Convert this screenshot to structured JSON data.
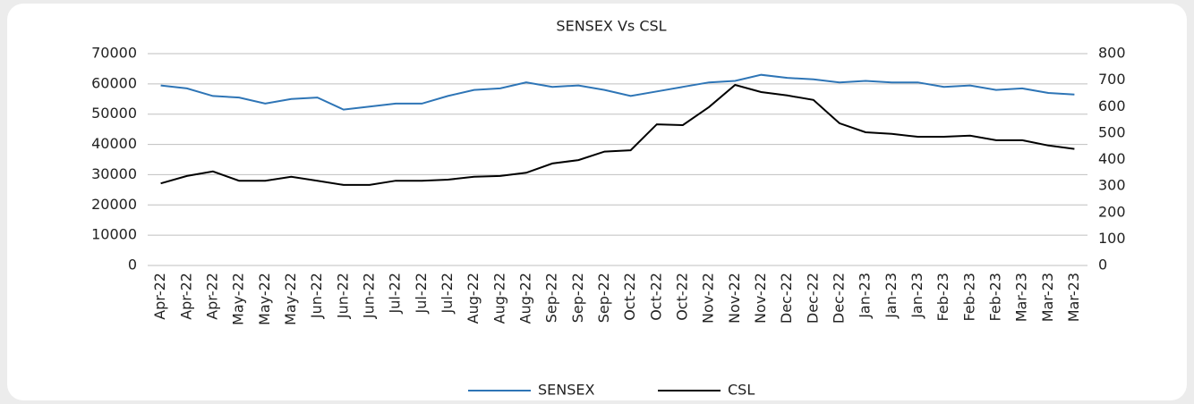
{
  "chart_data": {
    "type": "line",
    "title": "SENSEX Vs CSL",
    "categories": [
      "Apr-22",
      "Apr-22",
      "Apr-22",
      "May-22",
      "May-22",
      "May-22",
      "Jun-22",
      "Jun-22",
      "Jun-22",
      "Jul-22",
      "Jul-22",
      "Jul-22",
      "Aug-22",
      "Aug-22",
      "Aug-22",
      "Sep-22",
      "Sep-22",
      "Sep-22",
      "Oct-22",
      "Oct-22",
      "Oct-22",
      "Nov-22",
      "Nov-22",
      "Nov-22",
      "Dec-22",
      "Dec-22",
      "Dec-22",
      "Jan-23",
      "Jan-23",
      "Jan-23",
      "Feb-23",
      "Feb-23",
      "Feb-23",
      "Mar-23",
      "Mar-23",
      "Mar-23"
    ],
    "series": [
      {
        "name": "SENSEX",
        "color": "#2e75b6",
        "axis": "y",
        "values": [
          59500,
          58500,
          56000,
          55500,
          53500,
          55000,
          55500,
          51500,
          52500,
          53500,
          53500,
          56000,
          58000,
          58500,
          60500,
          59000,
          59500,
          58000,
          56000,
          57500,
          59000,
          60500,
          61000,
          63000,
          62000,
          61500,
          60500,
          61000,
          60500,
          60500,
          59000,
          59500,
          58000,
          58500,
          57000,
          56500
        ]
      },
      {
        "name": "CSL",
        "color": "#000000",
        "axis": "y2",
        "values": [
          310,
          338,
          355,
          320,
          320,
          335,
          320,
          304,
          304,
          320,
          320,
          324,
          335,
          338,
          350,
          385,
          398,
          430,
          435,
          533,
          530,
          598,
          682,
          655,
          642,
          625,
          537,
          503,
          497,
          486,
          486,
          490,
          473,
          473,
          453,
          440
        ]
      }
    ],
    "ylim": [
      0,
      70000
    ],
    "yticks": [
      0,
      10000,
      20000,
      30000,
      40000,
      50000,
      60000,
      70000
    ],
    "y2lim": [
      0,
      800
    ],
    "y2ticks": [
      0,
      100,
      200,
      300,
      400,
      500,
      600,
      700,
      800
    ],
    "grid": true,
    "legend": "bottom"
  }
}
